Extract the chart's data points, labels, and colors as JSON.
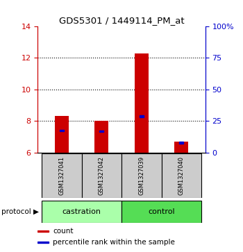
{
  "title": "GDS5301 / 1449114_PM_at",
  "samples": [
    "GSM1327041",
    "GSM1327042",
    "GSM1327039",
    "GSM1327040"
  ],
  "protocol_groups": [
    {
      "label": "castration",
      "indices": [
        0,
        1
      ],
      "color": "#aaffaa"
    },
    {
      "label": "control",
      "indices": [
        2,
        3
      ],
      "color": "#55dd55"
    }
  ],
  "red_bar_tops": [
    8.3,
    8.0,
    12.3,
    6.7
  ],
  "blue_marker_values": [
    7.4,
    7.35,
    8.3,
    6.62
  ],
  "ymin": 6,
  "ymax": 14,
  "yticks_left": [
    6,
    8,
    10,
    12,
    14
  ],
  "yticks_right": [
    0,
    25,
    50,
    75,
    100
  ],
  "yticks_right_labels": [
    "0",
    "25",
    "50",
    "75",
    "100%"
  ],
  "left_axis_color": "#cc0000",
  "right_axis_color": "#0000cc",
  "bar_color": "#cc0000",
  "blue_marker_color": "#0000cc",
  "sample_box_color": "#cccccc",
  "bar_width": 0.35,
  "grid_ticks": [
    8,
    10,
    12
  ],
  "legend_items": [
    {
      "color": "#cc0000",
      "label": "count"
    },
    {
      "color": "#0000cc",
      "label": "percentile rank within the sample"
    }
  ]
}
